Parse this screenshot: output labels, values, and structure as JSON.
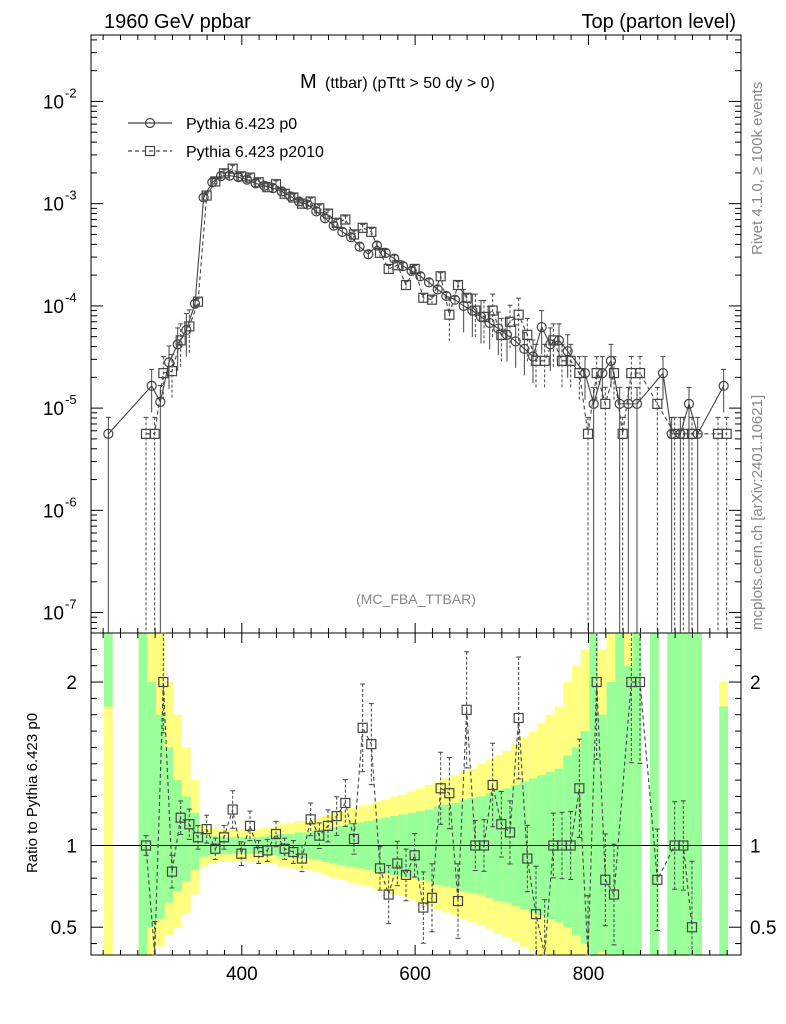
{
  "header": {
    "left": "1960 GeV ppbar",
    "right": "Top (parton level)"
  },
  "side_labels": {
    "rivet": "Rivet 4.1.0, ≥ 100k events",
    "mcplots": "mcplots.cern.ch [arXiv:2401.10621]"
  },
  "chart_data": {
    "type": "line",
    "title_main": "M",
    "title_rest": "(ttbar) (pTtt > 50 dy > 0)",
    "analysis_tag": "(MC_FBA_TTBAR)",
    "x_range": [
      226,
      976
    ],
    "y_log_range": [
      -7.2,
      -1.35
    ],
    "y_tick_labels": [
      "10",
      "10",
      "10",
      "10",
      "10",
      "10"
    ],
    "y_tick_exponents": [
      "-2",
      "-3",
      "-4",
      "-5",
      "-6",
      "-7"
    ],
    "y_tick_values": [
      -2,
      -3,
      -4,
      -5,
      -6,
      -7
    ],
    "x_tick_labels": [
      "400",
      "600",
      "800"
    ],
    "x_tick_values": [
      400,
      600,
      800
    ],
    "ratio_ylabel": "Ratio to Pythia 6.423 p0",
    "ratio_range": [
      0.33,
      2.3
    ],
    "ratio_tick_labels": [
      "2",
      "1",
      "0.5"
    ],
    "ratio_tick_values": [
      2,
      1,
      0.5
    ],
    "series": [
      {
        "name": "Pythia 6.423 p0",
        "marker": "circle",
        "dashed": false,
        "points": [
          [
            246,
            5.6e-06
          ],
          [
            296,
            1.65e-05
          ],
          [
            306,
            1.15e-05
          ],
          [
            316,
            2.8e-05
          ],
          [
            326,
            4.2e-05
          ],
          [
            336,
            5.8e-05
          ],
          [
            346,
            0.000105
          ],
          [
            356,
            0.00115
          ],
          [
            366,
            0.00162
          ],
          [
            376,
            0.00186
          ],
          [
            386,
            0.00188
          ],
          [
            396,
            0.00182
          ],
          [
            406,
            0.00172
          ],
          [
            416,
            0.00158
          ],
          [
            426,
            0.0015
          ],
          [
            436,
            0.00142
          ],
          [
            446,
            0.00132
          ],
          [
            456,
            0.00118
          ],
          [
            466,
            0.00105
          ],
          [
            476,
            0.00098
          ],
          [
            486,
            0.00084
          ],
          [
            496,
            0.00072
          ],
          [
            506,
            0.00061
          ],
          [
            516,
            0.00053
          ],
          [
            526,
            0.00047
          ],
          [
            536,
            0.00038
          ],
          [
            546,
            0.00032
          ],
          [
            556,
            0.00039
          ],
          [
            566,
            0.00033
          ],
          [
            576,
            0.00029
          ],
          [
            586,
            0.000245
          ],
          [
            596,
            0.00022
          ],
          [
            606,
            0.000195
          ],
          [
            616,
            0.00017
          ],
          [
            626,
            0.000145
          ],
          [
            636,
            0.000125
          ],
          [
            646,
            0.000115
          ],
          [
            656,
            0.0001
          ],
          [
            666,
            9e-05
          ],
          [
            676,
            7.8e-05
          ],
          [
            686,
            6.8e-05
          ],
          [
            696,
            6e-05
          ],
          [
            706,
            5.2e-05
          ],
          [
            716,
            4.5e-05
          ],
          [
            726,
            3.8e-05
          ],
          [
            736,
            3.2e-05
          ],
          [
            746,
            6.2e-05
          ],
          [
            756,
            4.2e-05
          ],
          [
            766,
            4.6e-05
          ],
          [
            776,
            3.6e-05
          ],
          [
            796,
            2.2e-05
          ],
          [
            806,
            1.1e-05
          ],
          [
            816,
            2.2e-05
          ],
          [
            826,
            2.9e-05
          ],
          [
            836,
            1.1e-05
          ],
          [
            846,
            1.1e-05
          ],
          [
            856,
            1.1e-05
          ],
          [
            886,
            2.2e-05
          ],
          [
            896,
            5.6e-06
          ],
          [
            906,
            5.6e-06
          ],
          [
            916,
            1.1e-05
          ],
          [
            926,
            5.6e-06
          ],
          [
            956,
            1.65e-05
          ]
        ]
      },
      {
        "name": "Pythia 6.423 p2010",
        "marker": "square",
        "dashed": true,
        "points": [
          [
            286,
            5.6e-06
          ],
          [
            296,
            5.6e-06
          ],
          [
            306,
            2.2e-05
          ],
          [
            316,
            2.3e-05
          ],
          [
            326,
            4.6e-05
          ],
          [
            336,
            6.3e-05
          ],
          [
            346,
            0.00011
          ],
          [
            356,
            0.0012
          ],
          [
            366,
            0.00165
          ],
          [
            376,
            0.00198
          ],
          [
            386,
            0.0022
          ],
          [
            396,
            0.00185
          ],
          [
            406,
            0.0018
          ],
          [
            416,
            0.00162
          ],
          [
            426,
            0.00145
          ],
          [
            436,
            0.00155
          ],
          [
            446,
            0.00125
          ],
          [
            456,
            0.00115
          ],
          [
            466,
            0.001
          ],
          [
            476,
            0.00105
          ],
          [
            486,
            0.0009
          ],
          [
            496,
            0.0008
          ],
          [
            506,
            0.00065
          ],
          [
            516,
            0.0007
          ],
          [
            526,
            0.0005
          ],
          [
            536,
            0.00058
          ],
          [
            546,
            0.00053
          ],
          [
            556,
            0.00033
          ],
          [
            566,
            0.00023
          ],
          [
            576,
            0.00025
          ],
          [
            586,
            0.00016
          ],
          [
            596,
            0.00023
          ],
          [
            606,
            0.00012
          ],
          [
            616,
            0.000115
          ],
          [
            626,
            0.000195
          ],
          [
            636,
            8.2e-05
          ],
          [
            646,
            0.00016
          ],
          [
            656,
            0.00012
          ],
          [
            666,
            9e-05
          ],
          [
            676,
            7.8e-05
          ],
          [
            686,
            9e-05
          ],
          [
            696,
            5.2e-05
          ],
          [
            706,
            7e-05
          ],
          [
            716,
            8.2e-05
          ],
          [
            726,
            5.2e-05
          ],
          [
            736,
            2.9e-05
          ],
          [
            746,
            2.9e-05
          ],
          [
            756,
            4.6e-05
          ],
          [
            766,
            2.9e-05
          ],
          [
            776,
            2.9e-05
          ],
          [
            786,
            2.2e-05
          ],
          [
            796,
            5.6e-06
          ],
          [
            806,
            2.2e-05
          ],
          [
            816,
            1.1e-05
          ],
          [
            826,
            2.2e-05
          ],
          [
            836,
            5.6e-06
          ],
          [
            846,
            2.2e-05
          ],
          [
            856,
            2.2e-05
          ],
          [
            876,
            1.1e-05
          ],
          [
            896,
            5.6e-06
          ],
          [
            906,
            5.6e-06
          ],
          [
            916,
            5.6e-06
          ],
          [
            946,
            5.6e-06
          ],
          [
            956,
            5.6e-06
          ]
        ]
      }
    ],
    "ratio_points": [
      [
        286,
        1.0
      ],
      [
        296,
        0.3
      ],
      [
        306,
        2.0
      ],
      [
        316,
        0.84
      ],
      [
        326,
        1.17
      ],
      [
        336,
        1.13
      ],
      [
        346,
        1.05
      ],
      [
        356,
        1.1
      ],
      [
        366,
        0.98
      ],
      [
        376,
        1.05
      ],
      [
        386,
        1.22
      ],
      [
        396,
        0.95
      ],
      [
        406,
        1.12
      ],
      [
        416,
        0.96
      ],
      [
        426,
        0.97
      ],
      [
        436,
        1.07
      ],
      [
        446,
        0.98
      ],
      [
        456,
        0.96
      ],
      [
        466,
        0.92
      ],
      [
        476,
        1.16
      ],
      [
        486,
        1.06
      ],
      [
        496,
        1.12
      ],
      [
        506,
        1.18
      ],
      [
        516,
        1.26
      ],
      [
        526,
        1.04
      ],
      [
        536,
        1.72
      ],
      [
        546,
        1.62
      ],
      [
        556,
        0.86
      ],
      [
        566,
        0.7
      ],
      [
        576,
        0.89
      ],
      [
        586,
        0.82
      ],
      [
        596,
        0.94
      ],
      [
        606,
        0.62
      ],
      [
        616,
        0.68
      ],
      [
        626,
        1.35
      ],
      [
        636,
        1.32
      ],
      [
        646,
        0.66
      ],
      [
        656,
        1.83
      ],
      [
        666,
        1.0
      ],
      [
        676,
        1.0
      ],
      [
        686,
        1.37
      ],
      [
        696,
        1.13
      ],
      [
        706,
        1.08
      ],
      [
        716,
        1.78
      ],
      [
        726,
        0.92
      ],
      [
        736,
        0.58
      ],
      [
        746,
        0.3
      ],
      [
        756,
        1.0
      ],
      [
        766,
        1.0
      ],
      [
        776,
        1.0
      ],
      [
        786,
        1.35
      ],
      [
        796,
        0.3
      ],
      [
        806,
        2.0
      ],
      [
        816,
        0.79
      ],
      [
        826,
        0.7
      ],
      [
        846,
        2.0
      ],
      [
        856,
        2.0
      ],
      [
        876,
        0.79
      ],
      [
        896,
        1.0
      ],
      [
        906,
        1.0
      ],
      [
        916,
        0.5
      ]
    ],
    "bands": [
      [
        246,
        1.85,
        3.0,
        0.2,
        3.0
      ],
      [
        286,
        0.3,
        2.5,
        0.3,
        3.0
      ],
      [
        296,
        0.5,
        2.0,
        0.3,
        2.5
      ],
      [
        306,
        0.55,
        1.8,
        0.38,
        2.3
      ],
      [
        316,
        0.65,
        1.6,
        0.45,
        2.0
      ],
      [
        326,
        0.72,
        1.4,
        0.5,
        1.8
      ],
      [
        336,
        0.78,
        1.3,
        0.58,
        1.6
      ],
      [
        346,
        0.85,
        1.2,
        0.7,
        1.4
      ],
      [
        356,
        0.93,
        1.07,
        0.87,
        1.13
      ],
      [
        366,
        0.94,
        1.06,
        0.89,
        1.11
      ],
      [
        376,
        0.945,
        1.055,
        0.9,
        1.1
      ],
      [
        386,
        0.95,
        1.05,
        0.9,
        1.1
      ],
      [
        396,
        0.95,
        1.05,
        0.9,
        1.1
      ],
      [
        406,
        0.95,
        1.05,
        0.9,
        1.1
      ],
      [
        416,
        0.95,
        1.05,
        0.9,
        1.1
      ],
      [
        426,
        0.945,
        1.055,
        0.89,
        1.11
      ],
      [
        436,
        0.94,
        1.06,
        0.89,
        1.11
      ],
      [
        446,
        0.93,
        1.07,
        0.87,
        1.13
      ],
      [
        456,
        0.93,
        1.07,
        0.86,
        1.14
      ],
      [
        466,
        0.92,
        1.08,
        0.85,
        1.15
      ],
      [
        476,
        0.92,
        1.08,
        0.85,
        1.15
      ],
      [
        486,
        0.91,
        1.09,
        0.84,
        1.16
      ],
      [
        496,
        0.9,
        1.1,
        0.82,
        1.18
      ],
      [
        506,
        0.89,
        1.11,
        0.8,
        1.2
      ],
      [
        516,
        0.88,
        1.12,
        0.79,
        1.21
      ],
      [
        526,
        0.87,
        1.13,
        0.77,
        1.23
      ],
      [
        536,
        0.86,
        1.14,
        0.76,
        1.24
      ],
      [
        546,
        0.85,
        1.15,
        0.75,
        1.25
      ],
      [
        556,
        0.84,
        1.16,
        0.73,
        1.27
      ],
      [
        566,
        0.83,
        1.17,
        0.72,
        1.28
      ],
      [
        576,
        0.82,
        1.18,
        0.7,
        1.3
      ],
      [
        586,
        0.81,
        1.19,
        0.69,
        1.31
      ],
      [
        596,
        0.8,
        1.2,
        0.67,
        1.33
      ],
      [
        606,
        0.79,
        1.21,
        0.65,
        1.35
      ],
      [
        616,
        0.78,
        1.22,
        0.63,
        1.37
      ],
      [
        626,
        0.76,
        1.24,
        0.61,
        1.39
      ],
      [
        636,
        0.75,
        1.25,
        0.59,
        1.41
      ],
      [
        646,
        0.74,
        1.26,
        0.57,
        1.43
      ],
      [
        656,
        0.72,
        1.28,
        0.55,
        1.45
      ],
      [
        666,
        0.71,
        1.29,
        0.53,
        1.47
      ],
      [
        676,
        0.7,
        1.3,
        0.51,
        1.5
      ],
      [
        686,
        0.68,
        1.32,
        0.49,
        1.52
      ],
      [
        696,
        0.66,
        1.34,
        0.46,
        1.55
      ],
      [
        706,
        0.65,
        1.35,
        0.44,
        1.58
      ],
      [
        716,
        0.63,
        1.37,
        0.41,
        1.62
      ],
      [
        726,
        0.61,
        1.39,
        0.38,
        1.66
      ],
      [
        736,
        0.59,
        1.41,
        0.35,
        1.7
      ],
      [
        746,
        0.57,
        1.43,
        0.33,
        1.75
      ],
      [
        756,
        0.55,
        1.45,
        0.3,
        1.8
      ],
      [
        766,
        0.53,
        1.47,
        0.3,
        1.85
      ],
      [
        776,
        0.5,
        1.55,
        0.3,
        2.0
      ],
      [
        786,
        0.45,
        1.6,
        0.3,
        2.1
      ],
      [
        796,
        0.4,
        1.7,
        0.3,
        2.2
      ],
      [
        806,
        0.3,
        2.3,
        0.3,
        3.0
      ],
      [
        816,
        0.35,
        1.8,
        0.3,
        2.2
      ],
      [
        826,
        0.3,
        2.0,
        0.3,
        2.4
      ],
      [
        836,
        0.3,
        2.3,
        0.3,
        3.0
      ],
      [
        846,
        0.3,
        2.1,
        0.3,
        2.5
      ],
      [
        856,
        0.3,
        2.3,
        0.3,
        3.0
      ],
      [
        876,
        0.3,
        2.5,
        0.3,
        3.0
      ],
      [
        896,
        0.3,
        2.3,
        0.3,
        2.5
      ],
      [
        906,
        0.3,
        2.5,
        0.3,
        3.0
      ],
      [
        916,
        0.3,
        2.3,
        0.3,
        3.0
      ],
      [
        926,
        0.3,
        2.5,
        0.3,
        3.0
      ],
      [
        956,
        0.3,
        1.85,
        0.3,
        2.0
      ]
    ]
  }
}
